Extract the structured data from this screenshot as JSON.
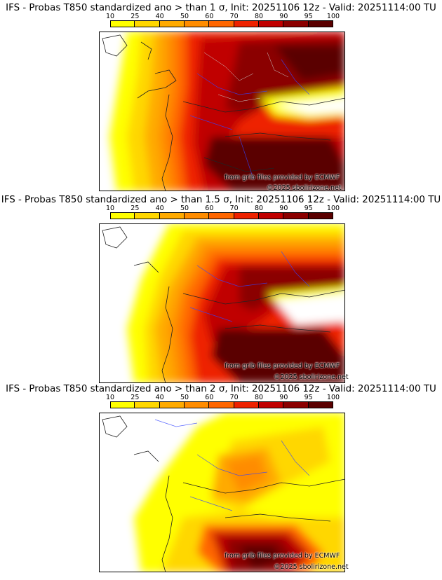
{
  "scale": {
    "labels": [
      "10",
      "25",
      "40",
      "50",
      "60",
      "70",
      "80",
      "90",
      "95",
      "100"
    ],
    "colors": [
      "#ffff00",
      "#ffd700",
      "#ffaa00",
      "#ff8c00",
      "#ff6600",
      "#ee2200",
      "#c00000",
      "#8b0000",
      "#5a0000"
    ]
  },
  "panels": [
    {
      "title": "IFS - Probas T850  standardized ano > than 1 σ, Init: 20251106 12z - Valid: 20251114:00 TU",
      "credit_source": "from grib files provided by ECMWF",
      "credit_copyright": "©2025 sbolirizone.net"
    },
    {
      "title": "IFS - Probas T850  standardized ano > than 1.5 σ, Init: 20251106 12z - Valid: 20251114:00 TU",
      "credit_source": "from grib files provided by ECMWF",
      "credit_copyright": "©2025 sbolirizone.net"
    },
    {
      "title": "IFS - Probas T850  standardized ano > than 2 σ, Init: 20251106 12z - Valid: 20251114:00 TU",
      "credit_source": "from grib files provided by ECMWF",
      "credit_copyright": "©2025 sbolirizone.net"
    }
  ]
}
